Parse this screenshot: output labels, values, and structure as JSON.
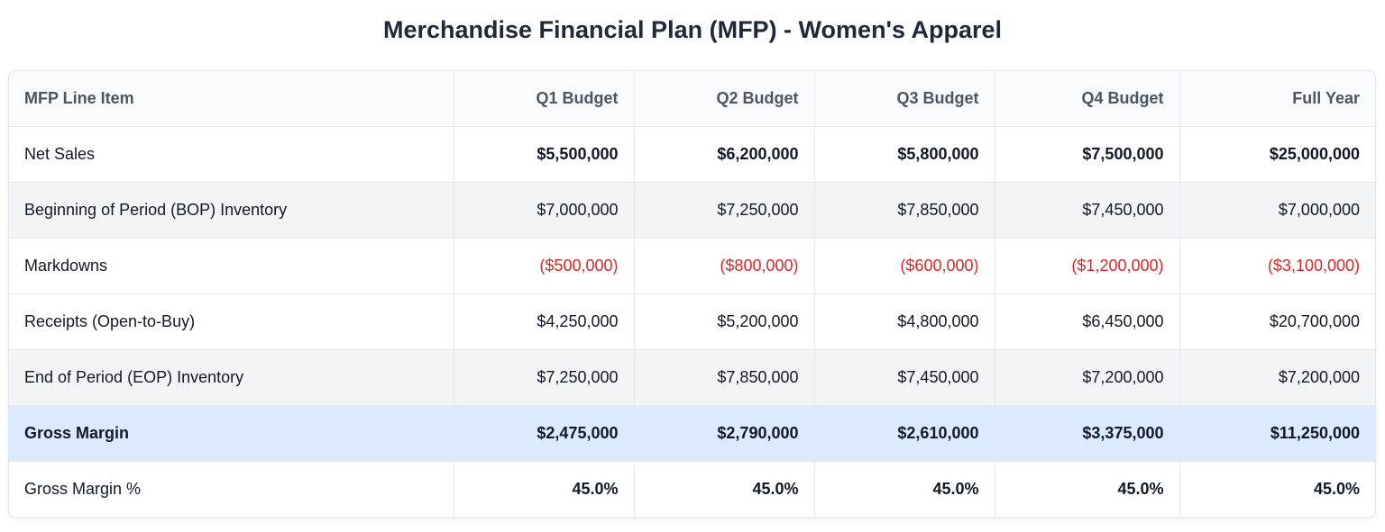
{
  "title": "Merchandise Financial Plan (MFP) - Women's Apparel",
  "colors": {
    "negative": "#dc2626",
    "highlight_row": "#dbeafe",
    "alt_row": "#f3f4f6"
  },
  "table": {
    "headers": [
      "MFP Line Item",
      "Q1 Budget",
      "Q2 Budget",
      "Q3 Budget",
      "Q4 Budget",
      "Full Year"
    ],
    "rows": [
      {
        "cells": [
          "Net Sales",
          "$5,500,000",
          "$6,200,000",
          "$5,800,000",
          "$7,500,000",
          "$25,000,000"
        ],
        "style": "bold"
      },
      {
        "cells": [
          "Beginning of Period (BOP) Inventory",
          "$7,000,000",
          "$7,250,000",
          "$7,850,000",
          "$7,450,000",
          "$7,000,000"
        ],
        "style": "alt"
      },
      {
        "cells": [
          "Markdowns",
          "($500,000)",
          "($800,000)",
          "($600,000)",
          "($1,200,000)",
          "($3,100,000)"
        ],
        "style": "neg"
      },
      {
        "cells": [
          "Receipts (Open-to-Buy)",
          "$4,250,000",
          "$5,200,000",
          "$4,800,000",
          "$6,450,000",
          "$20,700,000"
        ],
        "style": ""
      },
      {
        "cells": [
          "End of Period (EOP) Inventory",
          "$7,250,000",
          "$7,850,000",
          "$7,450,000",
          "$7,200,000",
          "$7,200,000"
        ],
        "style": "alt"
      },
      {
        "cells": [
          "Gross Margin",
          "$2,475,000",
          "$2,790,000",
          "$2,610,000",
          "$3,375,000",
          "$11,250,000"
        ],
        "style": "hl"
      },
      {
        "cells": [
          "Gross Margin %",
          "45.0%",
          "45.0%",
          "45.0%",
          "45.0%",
          "45.0%"
        ],
        "style": "bold"
      }
    ]
  }
}
